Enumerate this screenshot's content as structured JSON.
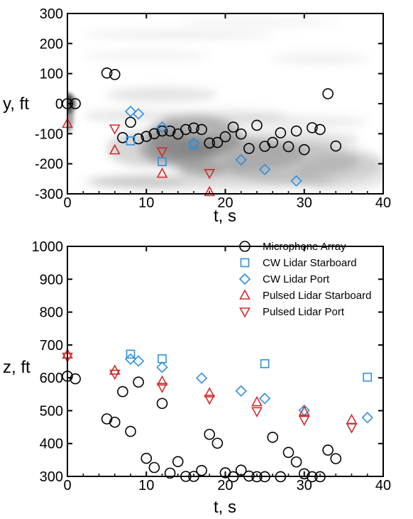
{
  "colors": {
    "microphone": "#000000",
    "cw_lidar": "#2e8fe0",
    "pulsed_lidar": "#d42a2a",
    "axes": "#000000",
    "contour_dark": "#333333",
    "contour_light": "#dcdcdc"
  },
  "chart_data": [
    {
      "type": "scatter",
      "title": "",
      "xlabel": "t, s",
      "ylabel": "y, ft",
      "xlim": [
        0,
        40
      ],
      "ylim": [
        -300,
        300
      ],
      "xticks": [
        0,
        10,
        20,
        30,
        40
      ],
      "yticks": [
        -300,
        -200,
        -100,
        0,
        100,
        200,
        300
      ],
      "x_tick_labels": [
        "0",
        "10",
        "20",
        "30",
        "40"
      ],
      "y_tick_labels": [
        "-300",
        "-200",
        "-100",
        "0",
        "100",
        "200",
        "300"
      ],
      "background": "grayscale contour field",
      "legend": "none",
      "grid": false,
      "series": [
        {
          "key": "microphone",
          "marker": "circle",
          "x": [
            0,
            1,
            5,
            6,
            7,
            8,
            9,
            10,
            11,
            12,
            13,
            14,
            15,
            16,
            17,
            18,
            19,
            20,
            21,
            22,
            23,
            24,
            25,
            26,
            27,
            28,
            29,
            30,
            31,
            32,
            33,
            34
          ],
          "y": [
            0,
            0,
            102,
            97,
            -113,
            -62,
            -117,
            -109,
            -100,
            -91,
            -91,
            -101,
            -86,
            -81,
            -86,
            -131,
            -129,
            -110,
            -78,
            -101,
            -149,
            -72,
            -142,
            -129,
            -97,
            -143,
            -91,
            -153,
            -80,
            -86,
            33,
            -141
          ]
        },
        {
          "key": "cw_starboard",
          "marker": "square",
          "x": [
            8,
            12,
            16
          ],
          "y": [
            -124,
            -193,
            -137
          ]
        },
        {
          "key": "cw_port",
          "marker": "diamond",
          "x": [
            8,
            9,
            12,
            16,
            22,
            25,
            29
          ],
          "y": [
            -26,
            -34,
            -78,
            -131,
            -187,
            -219,
            -257
          ]
        },
        {
          "key": "pulsed_starboard",
          "marker": "triangle-up",
          "x": [
            0,
            6,
            12,
            18
          ],
          "y": [
            -67,
            -155,
            -233,
            -294
          ]
        },
        {
          "key": "pulsed_port",
          "marker": "triangle-down",
          "x": [
            6,
            12,
            18
          ],
          "y": [
            -83,
            -159,
            -231
          ]
        }
      ]
    },
    {
      "type": "scatter",
      "title": "",
      "xlabel": "t, s",
      "ylabel": "z, ft",
      "xlim": [
        0,
        40
      ],
      "ylim": [
        300,
        1000
      ],
      "xticks": [
        0,
        10,
        20,
        30,
        40
      ],
      "yticks": [
        300,
        400,
        500,
        600,
        700,
        800,
        900,
        1000
      ],
      "x_tick_labels": [
        "0",
        "10",
        "20",
        "30",
        "40"
      ],
      "y_tick_labels": [
        "300",
        "400",
        "500",
        "600",
        "700",
        "800",
        "900",
        "1000"
      ],
      "legend": "top-right",
      "grid": false,
      "series": [
        {
          "key": "microphone",
          "name": "Microphone Array",
          "marker": "circle",
          "x": [
            0,
            1,
            5,
            6,
            7,
            8,
            9,
            10,
            11,
            12,
            13,
            14,
            15,
            16,
            17,
            18,
            19,
            20,
            21,
            22,
            23,
            24,
            25,
            26,
            27,
            28,
            29,
            30,
            31,
            32,
            33,
            34
          ],
          "y": [
            605,
            597,
            475,
            465,
            558,
            437,
            587,
            355,
            327,
            522,
            310,
            345,
            300,
            300,
            318,
            428,
            401,
            311,
            299,
            319,
            301,
            299,
            299,
            419,
            299,
            373,
            344,
            308,
            299,
            299,
            380,
            354
          ]
        },
        {
          "key": "cw_starboard",
          "name": "CW Lidar Starboard",
          "marker": "square",
          "x": [
            8,
            12,
            25,
            38
          ],
          "y": [
            672,
            658,
            643,
            602
          ]
        },
        {
          "key": "cw_port",
          "name": "CW Lidar Port",
          "marker": "diamond",
          "x": [
            8,
            9,
            12,
            17,
            22,
            25,
            30,
            38
          ],
          "y": [
            657,
            651,
            632,
            599,
            560,
            537,
            501,
            479
          ]
        },
        {
          "key": "pulsed_starboard",
          "name": "Pulsed Lidar Starboard",
          "marker": "triangle-up",
          "x": [
            0,
            6,
            12,
            18,
            24,
            30,
            36
          ],
          "y": [
            671,
            622,
            589,
            553,
            526,
            497,
            472
          ]
        },
        {
          "key": "pulsed_port",
          "name": "Pulsed Lidar Port",
          "marker": "triangle-down",
          "x": [
            0,
            6,
            12,
            18,
            24,
            30,
            36
          ],
          "y": [
            664,
            612,
            572,
            536,
            498,
            472,
            449
          ]
        }
      ]
    }
  ]
}
